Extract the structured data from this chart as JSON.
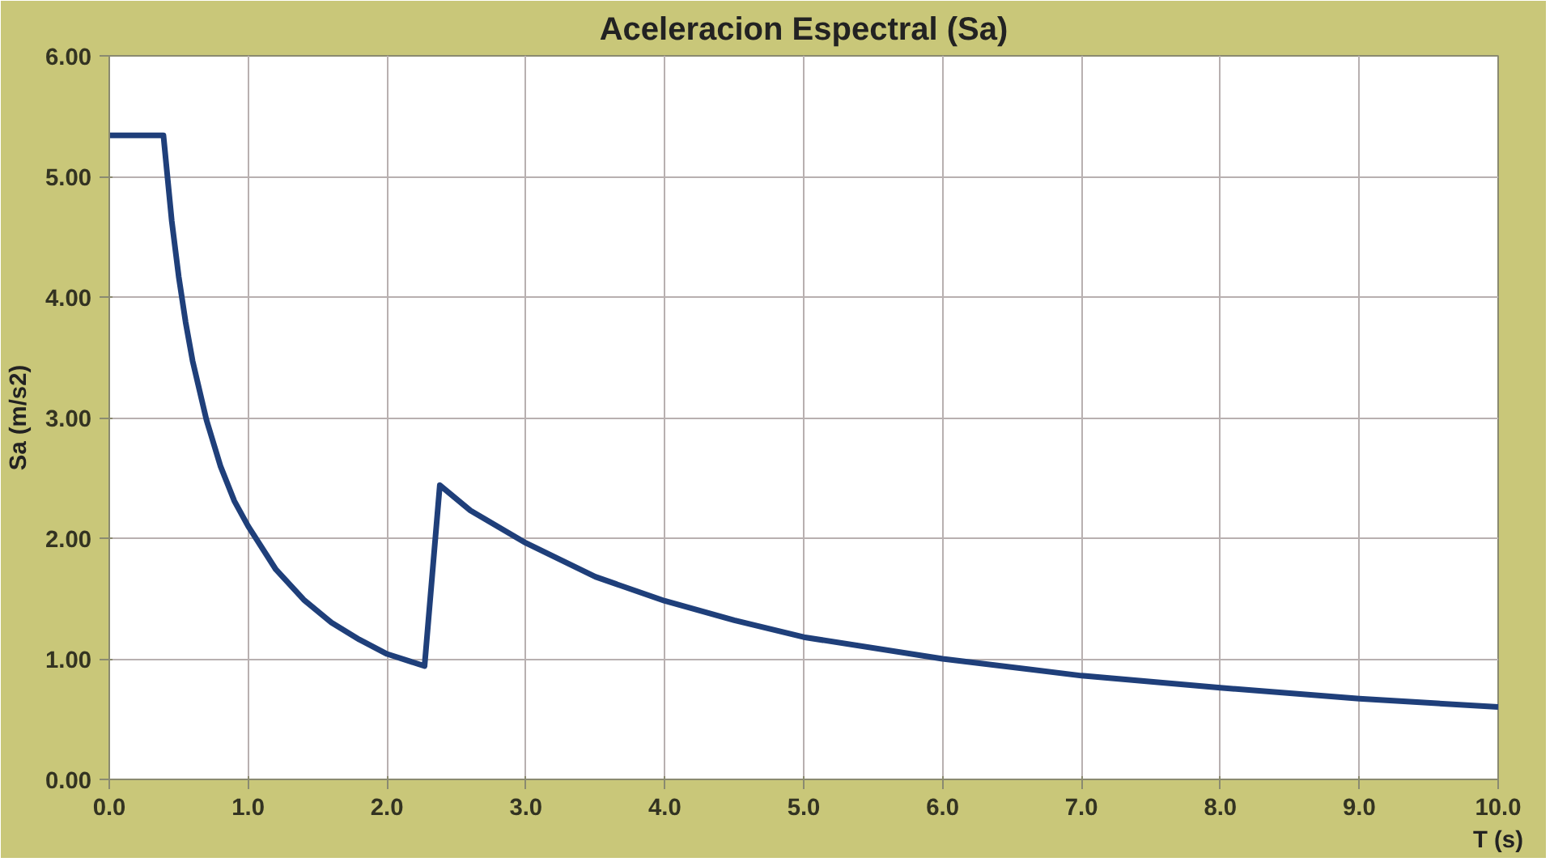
{
  "chart_data": {
    "type": "line",
    "title": "Aceleracion Espectral (Sa)",
    "xlabel": "T (s)",
    "ylabel": "Sa (m/s2)",
    "x": [
      0,
      0.39,
      0.45,
      0.5,
      0.55,
      0.6,
      0.7,
      0.8,
      0.9,
      1.0,
      1.2,
      1.4,
      1.6,
      1.8,
      2.0,
      2.27,
      2.38,
      2.6,
      3.0,
      3.5,
      4.0,
      4.5,
      5.0,
      6.0,
      7.0,
      8.0,
      9.0,
      10.0
    ],
    "series": [
      {
        "color": "#1f3f7a",
        "values": [
          5.34,
          5.34,
          4.63,
          4.17,
          3.79,
          3.47,
          2.98,
          2.6,
          2.31,
          2.1,
          1.74,
          1.49,
          1.3,
          1.16,
          1.04,
          0.94,
          2.44,
          2.23,
          1.96,
          1.68,
          1.48,
          1.32,
          1.18,
          1.0,
          0.86,
          0.76,
          0.67,
          0.6
        ]
      }
    ],
    "xlim": [
      0,
      10
    ],
    "ylim": [
      0,
      6
    ],
    "xticks": [
      {
        "value": 0,
        "label": "0.0"
      },
      {
        "value": 1,
        "label": "1.0"
      },
      {
        "value": 2,
        "label": "2.0"
      },
      {
        "value": 3,
        "label": "3.0"
      },
      {
        "value": 4,
        "label": "4.0"
      },
      {
        "value": 5,
        "label": "5.0"
      },
      {
        "value": 6,
        "label": "6.0"
      },
      {
        "value": 7,
        "label": "7.0"
      },
      {
        "value": 8,
        "label": "8.0"
      },
      {
        "value": 9,
        "label": "9.0"
      },
      {
        "value": 10,
        "label": "10.0"
      }
    ],
    "yticks": [
      {
        "value": 0,
        "label": "0.00"
      },
      {
        "value": 1,
        "label": "1.00"
      },
      {
        "value": 2,
        "label": "2.00"
      },
      {
        "value": 3,
        "label": "3.00"
      },
      {
        "value": 4,
        "label": "4.00"
      },
      {
        "value": 5,
        "label": "5.00"
      },
      {
        "value": 6,
        "label": "6.00"
      }
    ],
    "grid": true,
    "marker": "none",
    "line_style": "solid"
  }
}
